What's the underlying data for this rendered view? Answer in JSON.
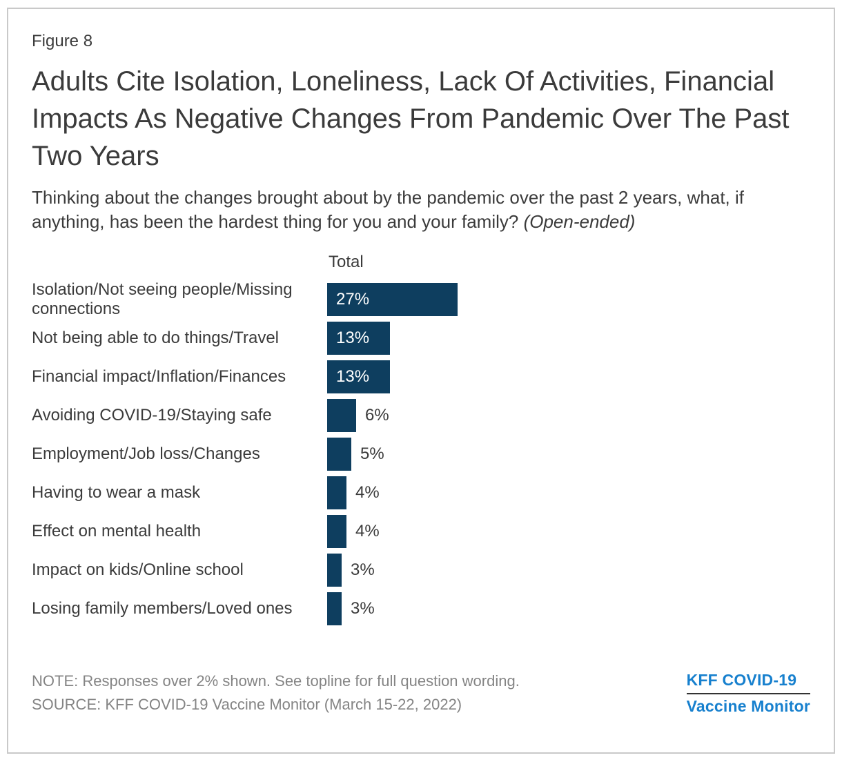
{
  "figure_label": "Figure 8",
  "title": "Adults Cite Isolation, Loneliness, Lack Of Activities, Financial Impacts As Negative Changes From Pandemic Over The Past Two Years",
  "subtitle": "Thinking about the changes brought about by the pandemic over the past 2 years, what, if anything, has been the hardest thing for you and your family?",
  "subtitle_suffix": "(Open-ended)",
  "chart_data": {
    "type": "bar",
    "orientation": "horizontal",
    "column_header": "Total",
    "categories": [
      "Isolation/Not seeing people/Missing connections",
      "Not being able to do things/Travel",
      "Financial impact/Inflation/Finances",
      "Avoiding COVID-19/Staying safe",
      "Employment/Job loss/Changes",
      "Having to wear a mask",
      "Effect on mental health",
      "Impact on kids/Online school",
      "Losing family members/Loved ones"
    ],
    "values": [
      27,
      13,
      13,
      6,
      5,
      4,
      4,
      3,
      3
    ],
    "unit": "%",
    "xlim": [
      0,
      30
    ],
    "grid": false,
    "legend": "none",
    "bar_color": "#0e3e5f",
    "inside_label_threshold": 10
  },
  "footer": {
    "note": "NOTE: Responses over 2% shown. See topline for full question wording.",
    "source": "SOURCE: KFF COVID-19 Vaccine Monitor (March 15-22, 2022)"
  },
  "logo": {
    "line1": "KFF COVID-19",
    "line2": "Vaccine Monitor",
    "color": "#1780ce"
  },
  "colors": {
    "text_dark": "#3b3b3b",
    "footer_gray": "#848484",
    "card_border": "#c9c9c9"
  }
}
